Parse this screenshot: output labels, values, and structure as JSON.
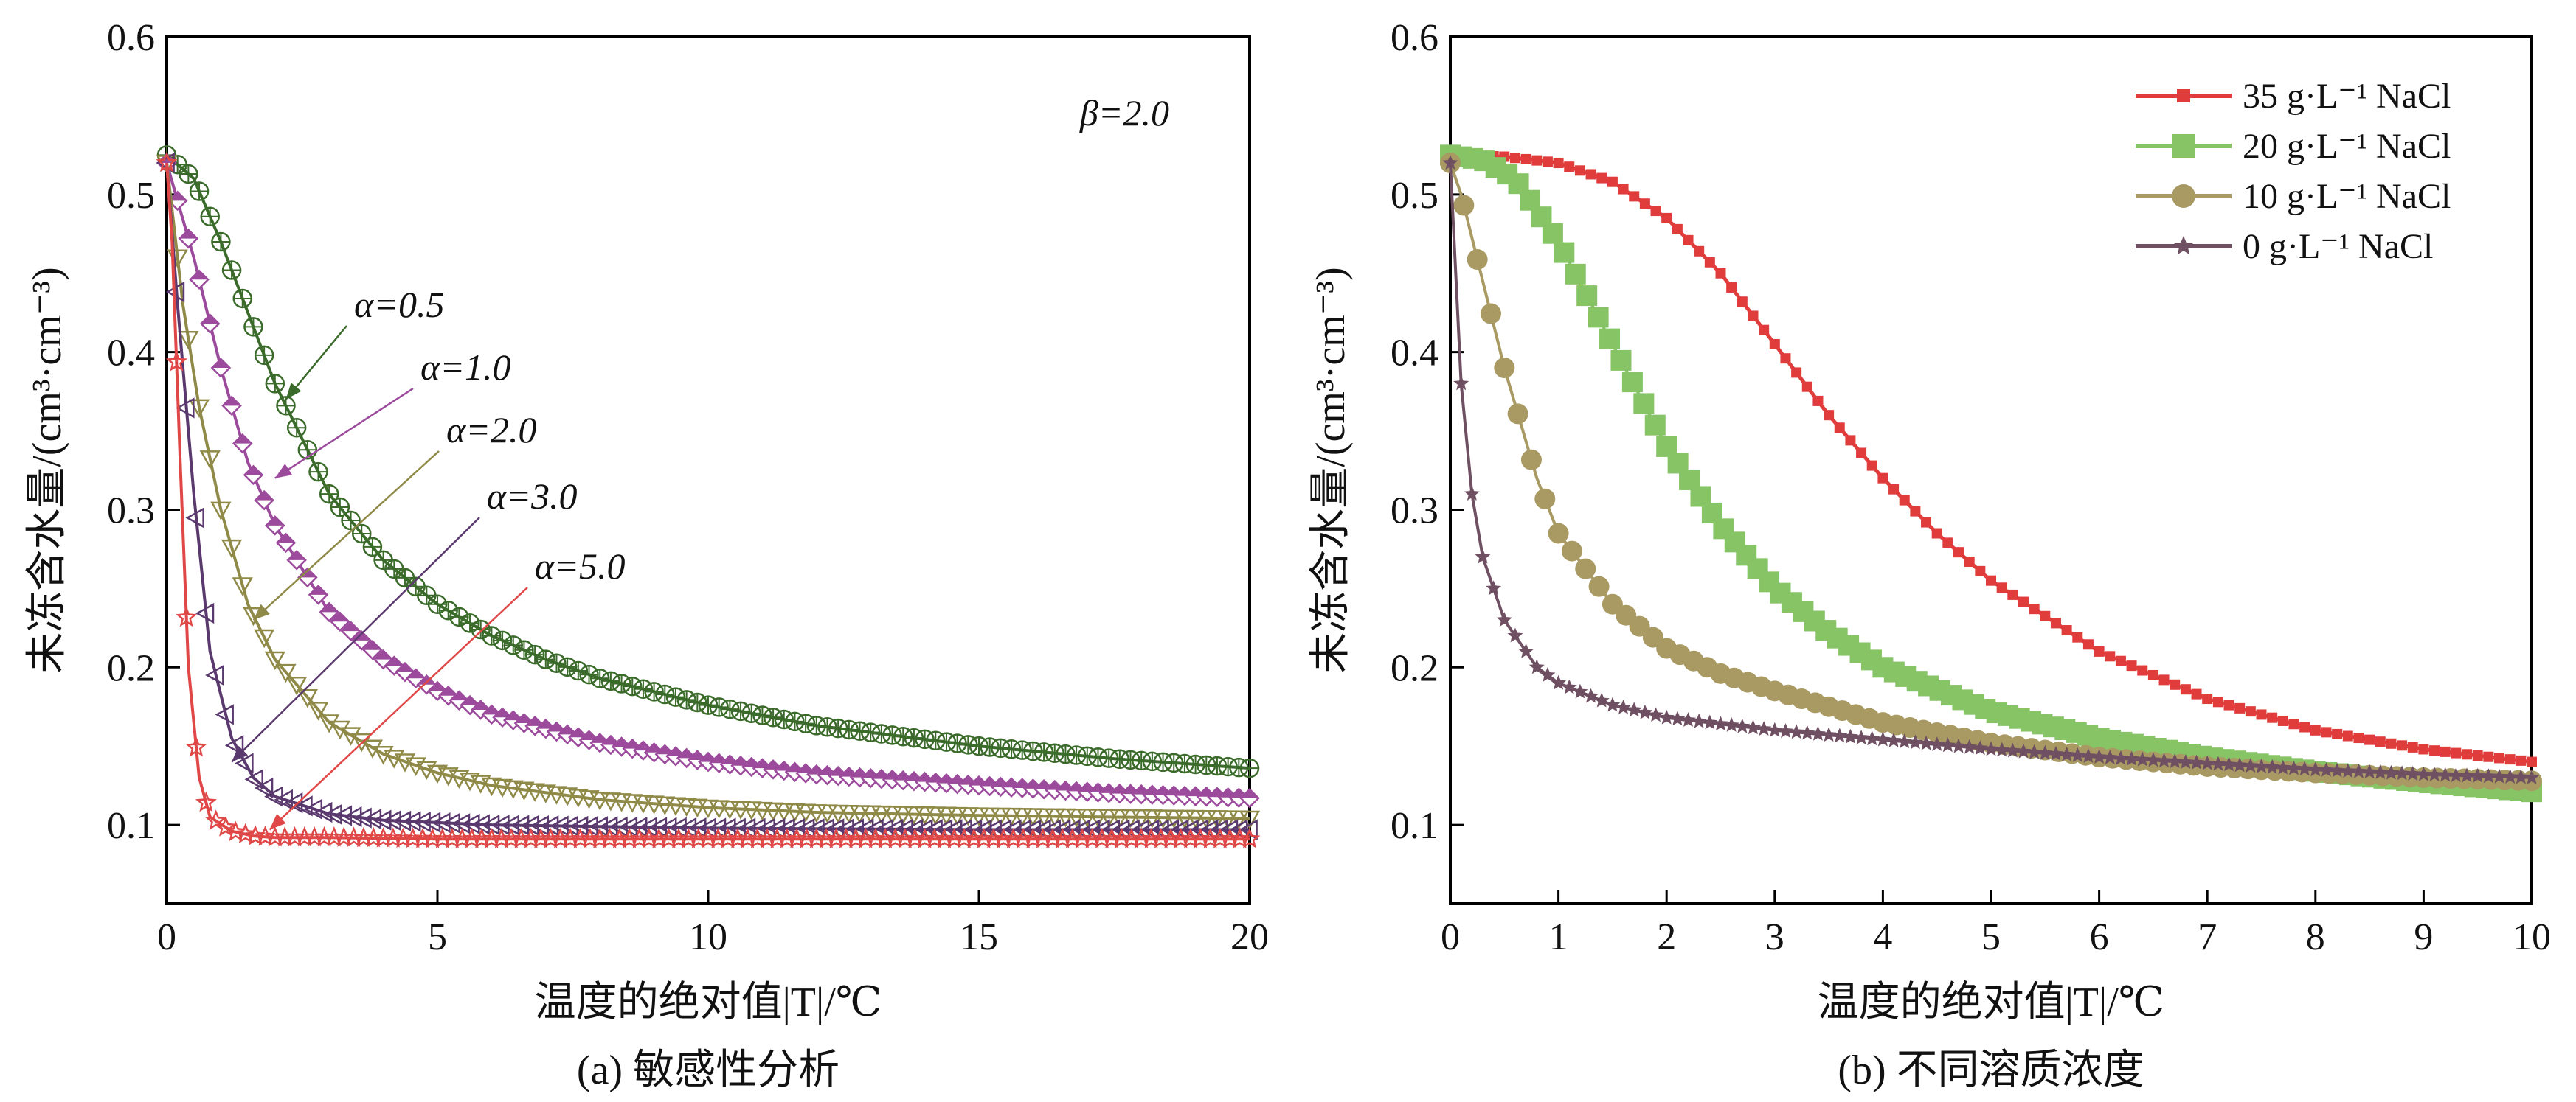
{
  "chart_data": [
    {
      "type": "line",
      "panel": "a",
      "caption": "(a) 敏感性分析",
      "title": "",
      "xlabel": "温度的绝对值|T|/℃",
      "ylabel": "未冻含水量/(cm³·cm⁻³)",
      "xlim": [
        0,
        20
      ],
      "ylim": [
        0.05,
        0.6
      ],
      "xticks": [
        "0",
        "5",
        "10",
        "15",
        "20"
      ],
      "yticks": [
        "0.1",
        "0.2",
        "0.3",
        "0.4",
        "0.5",
        "0.6"
      ],
      "grid": false,
      "parameter_note": "β=2.0",
      "series": [
        {
          "name": "α=0.5",
          "color": "#3b6b2a",
          "marker": "circle-cross",
          "x": [
            0,
            0.5,
            1,
            1.5,
            2,
            3,
            4,
            5,
            6,
            7,
            8,
            10,
            12,
            15,
            17.5,
            20
          ],
          "y": [
            0.525,
            0.51,
            0.47,
            0.425,
            0.38,
            0.31,
            0.268,
            0.24,
            0.22,
            0.205,
            0.193,
            0.176,
            0.163,
            0.15,
            0.142,
            0.136
          ]
        },
        {
          "name": "α=1.0",
          "color": "#9b4a9c",
          "marker": "half-diamond",
          "x": [
            0,
            0.5,
            1,
            1.5,
            2,
            3,
            4,
            5,
            6,
            8,
            10,
            12,
            15,
            17.5,
            20
          ],
          "y": [
            0.52,
            0.46,
            0.39,
            0.33,
            0.29,
            0.235,
            0.205,
            0.185,
            0.17,
            0.152,
            0.14,
            0.132,
            0.125,
            0.12,
            0.117
          ]
        },
        {
          "name": "α=2.0",
          "color": "#8f8a48",
          "marker": "triangle-down",
          "x": [
            0,
            0.3,
            0.6,
            1,
            1.5,
            2,
            3,
            4,
            5,
            6,
            8,
            10,
            12,
            15,
            20
          ],
          "y": [
            0.52,
            0.43,
            0.365,
            0.3,
            0.24,
            0.205,
            0.165,
            0.145,
            0.133,
            0.125,
            0.116,
            0.111,
            0.108,
            0.106,
            0.104
          ]
        },
        {
          "name": "α=3.0",
          "color": "#5a3a6e",
          "marker": "triangle-left",
          "x": [
            0,
            0.2,
            0.5,
            0.8,
            1.2,
            1.6,
            2,
            3,
            4,
            6,
            8,
            10,
            15,
            20
          ],
          "y": [
            0.52,
            0.43,
            0.31,
            0.21,
            0.155,
            0.13,
            0.118,
            0.107,
            0.103,
            0.1,
            0.099,
            0.098,
            0.097,
            0.097
          ]
        },
        {
          "name": "α=5.0",
          "color": "#e04848",
          "marker": "star",
          "x": [
            0,
            0.1,
            0.25,
            0.4,
            0.6,
            0.8,
            1.2,
            1.6,
            2,
            3,
            5,
            10,
            15,
            20
          ],
          "y": [
            0.52,
            0.47,
            0.33,
            0.2,
            0.13,
            0.105,
            0.096,
            0.093,
            0.092,
            0.092,
            0.091,
            0.091,
            0.091,
            0.091
          ]
        }
      ],
      "annotations": [
        {
          "text": "α=0.5",
          "series": "α=0.5",
          "at_x": 2.2,
          "at_y": 0.37
        },
        {
          "text": "α=1.0",
          "series": "α=1.0",
          "at_x": 2.0,
          "at_y": 0.32
        },
        {
          "text": "α=2.0",
          "series": "α=2.0",
          "at_x": 1.6,
          "at_y": 0.23
        },
        {
          "text": "α=3.0",
          "series": "α=3.0",
          "at_x": 1.2,
          "at_y": 0.14
        },
        {
          "text": "α=5.0",
          "series": "α=5.0",
          "at_x": 1.9,
          "at_y": 0.097
        }
      ]
    },
    {
      "type": "line",
      "panel": "b",
      "caption": "(b) 不同溶质浓度",
      "title": "",
      "xlabel": "温度的绝对值|T|/℃",
      "ylabel": "未冻含水量/(cm³·cm⁻³)",
      "xlim": [
        0,
        10
      ],
      "ylim": [
        0.05,
        0.6
      ],
      "xticks": [
        "0",
        "1",
        "2",
        "3",
        "4",
        "5",
        "6",
        "7",
        "8",
        "9",
        "10"
      ],
      "yticks": [
        "0.1",
        "0.2",
        "0.3",
        "0.4",
        "0.5",
        "0.6"
      ],
      "grid": false,
      "legend_position": "top-right",
      "series": [
        {
          "name": "35 g·L⁻¹ NaCl",
          "color": "#e03c3c",
          "marker": "square",
          "x": [
            0,
            0.5,
            1,
            1.5,
            2,
            2.5,
            3,
            3.5,
            4,
            4.5,
            5,
            6,
            7,
            8,
            9,
            10
          ],
          "y": [
            0.525,
            0.524,
            0.52,
            0.508,
            0.485,
            0.45,
            0.405,
            0.36,
            0.32,
            0.285,
            0.255,
            0.21,
            0.18,
            0.16,
            0.148,
            0.14
          ]
        },
        {
          "name": "20 g·L⁻¹ NaCl",
          "color": "#86c466",
          "marker": "square",
          "x": [
            0,
            0.3,
            0.6,
            1,
            1.5,
            2,
            2.5,
            3,
            3.5,
            4,
            5,
            6,
            7,
            8,
            9,
            10
          ],
          "y": [
            0.525,
            0.522,
            0.51,
            0.47,
            0.405,
            0.34,
            0.29,
            0.25,
            0.222,
            0.2,
            0.172,
            0.155,
            0.143,
            0.134,
            0.127,
            0.121
          ]
        },
        {
          "name": "10 g·L⁻¹ NaCl",
          "color": "#a89a62",
          "marker": "circle",
          "x": [
            0,
            0.1,
            0.3,
            0.5,
            0.8,
            1,
            1.5,
            2,
            2.5,
            3,
            4,
            5,
            6,
            7,
            8,
            9,
            10
          ],
          "y": [
            0.52,
            0.5,
            0.445,
            0.39,
            0.32,
            0.285,
            0.24,
            0.212,
            0.196,
            0.185,
            0.165,
            0.152,
            0.143,
            0.137,
            0.133,
            0.13,
            0.128
          ]
        },
        {
          "name": "0 g·L⁻¹ NaCl",
          "color": "#6e5062",
          "marker": "star",
          "x": [
            0,
            0.1,
            0.2,
            0.3,
            0.5,
            0.8,
            1,
            1.5,
            2,
            3,
            4,
            5,
            6,
            7,
            8,
            9,
            10
          ],
          "y": [
            0.52,
            0.38,
            0.31,
            0.27,
            0.23,
            0.2,
            0.19,
            0.176,
            0.168,
            0.16,
            0.154,
            0.148,
            0.143,
            0.139,
            0.135,
            0.132,
            0.13
          ]
        }
      ]
    }
  ]
}
